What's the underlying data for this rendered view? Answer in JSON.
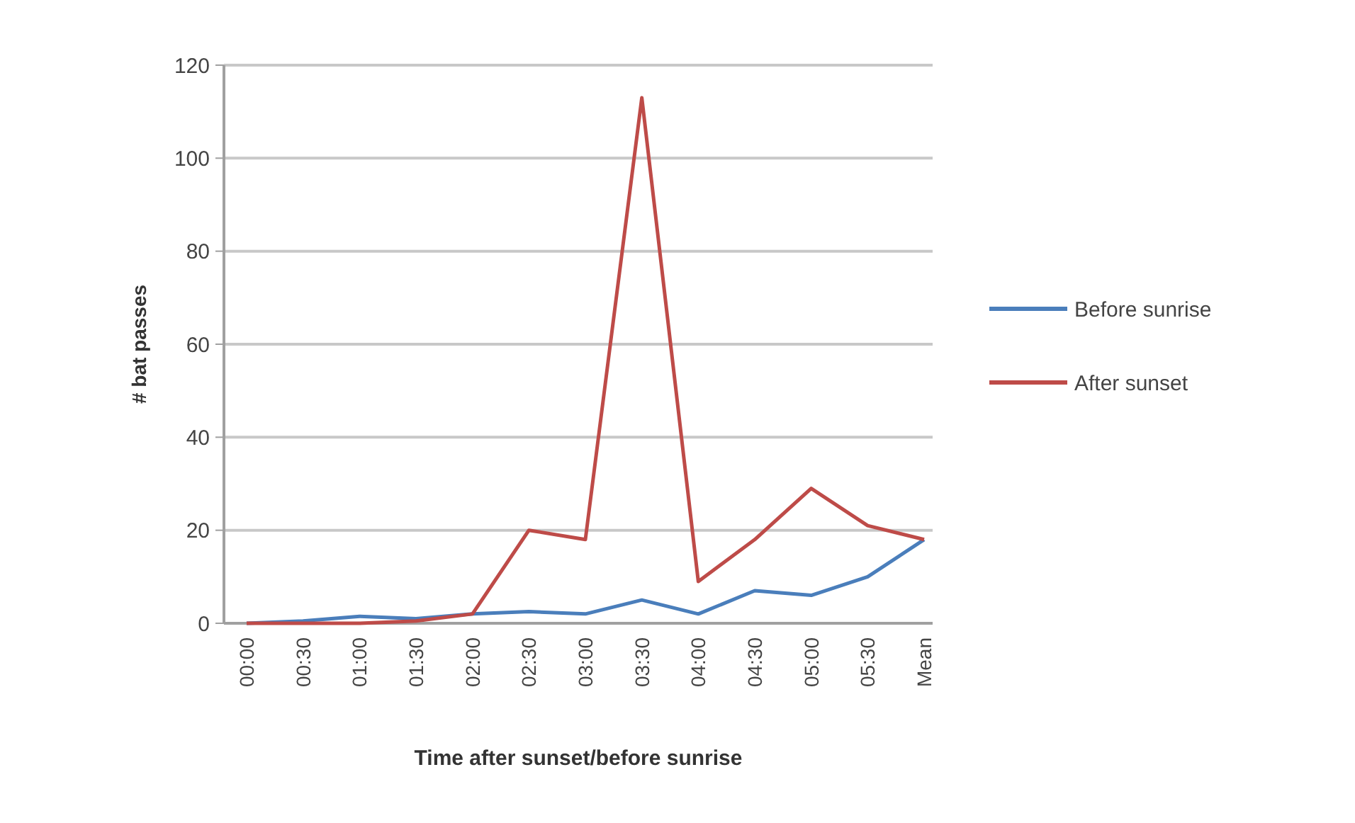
{
  "chart_data": {
    "type": "line",
    "xlabel": "Time after sunset/before sunrise",
    "ylabel": "# bat passes",
    "categories": [
      "00:00",
      "00:30",
      "01:00",
      "01:30",
      "02:00",
      "02:30",
      "03:00",
      "03:30",
      "04:00",
      "04:30",
      "05:00",
      "05:30",
      "Mean"
    ],
    "series": [
      {
        "name": "Before sunrise",
        "color": "#4a7ebb",
        "values": [
          0,
          0.5,
          1.5,
          1,
          2,
          2.5,
          2,
          5,
          2,
          7,
          6,
          10,
          18
        ]
      },
      {
        "name": "After sunset",
        "color": "#be4b48",
        "values": [
          0,
          0,
          0,
          0.5,
          2,
          20,
          18,
          113,
          9,
          18,
          29,
          21,
          18
        ]
      }
    ],
    "ylim": [
      0,
      120
    ],
    "yticks": [
      0,
      20,
      40,
      60,
      80,
      100,
      120
    ],
    "grid": "y",
    "legend": "right",
    "marker": "none",
    "line_style": "solid"
  }
}
